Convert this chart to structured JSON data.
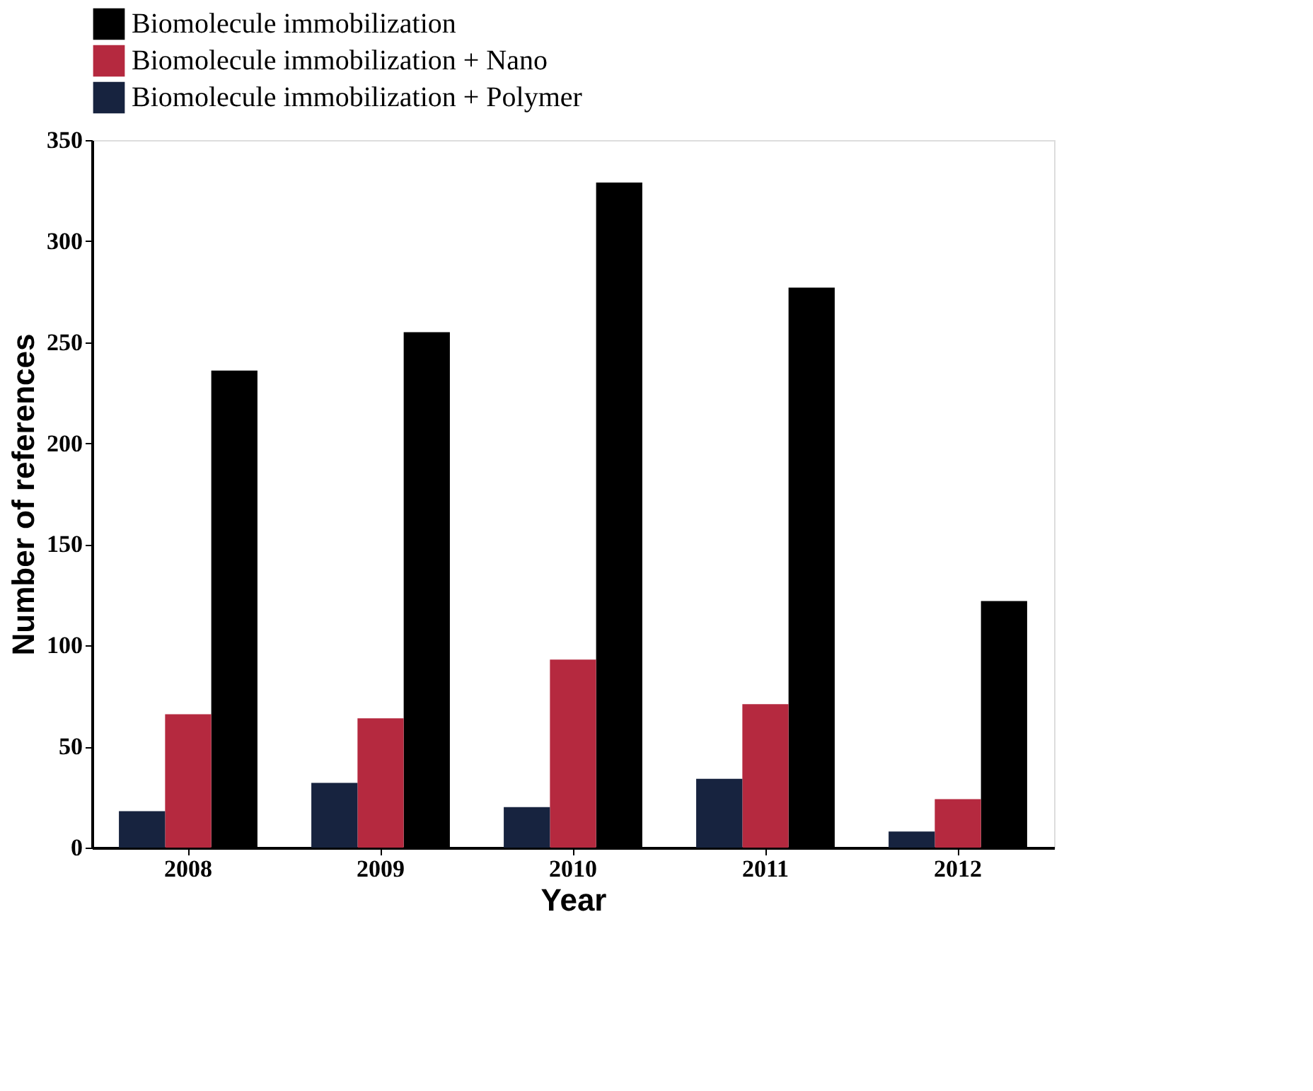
{
  "chart_data": {
    "type": "bar",
    "xlabel": "Year",
    "ylabel": "Number of references",
    "categories": [
      "2008",
      "2009",
      "2010",
      "2011",
      "2012"
    ],
    "series": [
      {
        "name": "Biomolecule immobilization",
        "color": "#000000",
        "values": [
          236,
          255,
          329,
          277,
          122
        ]
      },
      {
        "name": "Biomolecule immobilization + Nano",
        "color": "#b5293f",
        "values": [
          66,
          64,
          93,
          71,
          24
        ]
      },
      {
        "name": "Biomolecule immobilization + Polymer",
        "color": "#17233f",
        "values": [
          18,
          32,
          20,
          34,
          8
        ]
      }
    ],
    "ylim": [
      0,
      350
    ],
    "yticks": [
      0,
      50,
      100,
      150,
      200,
      250,
      300,
      350
    ],
    "grid": false,
    "legend": "top"
  }
}
